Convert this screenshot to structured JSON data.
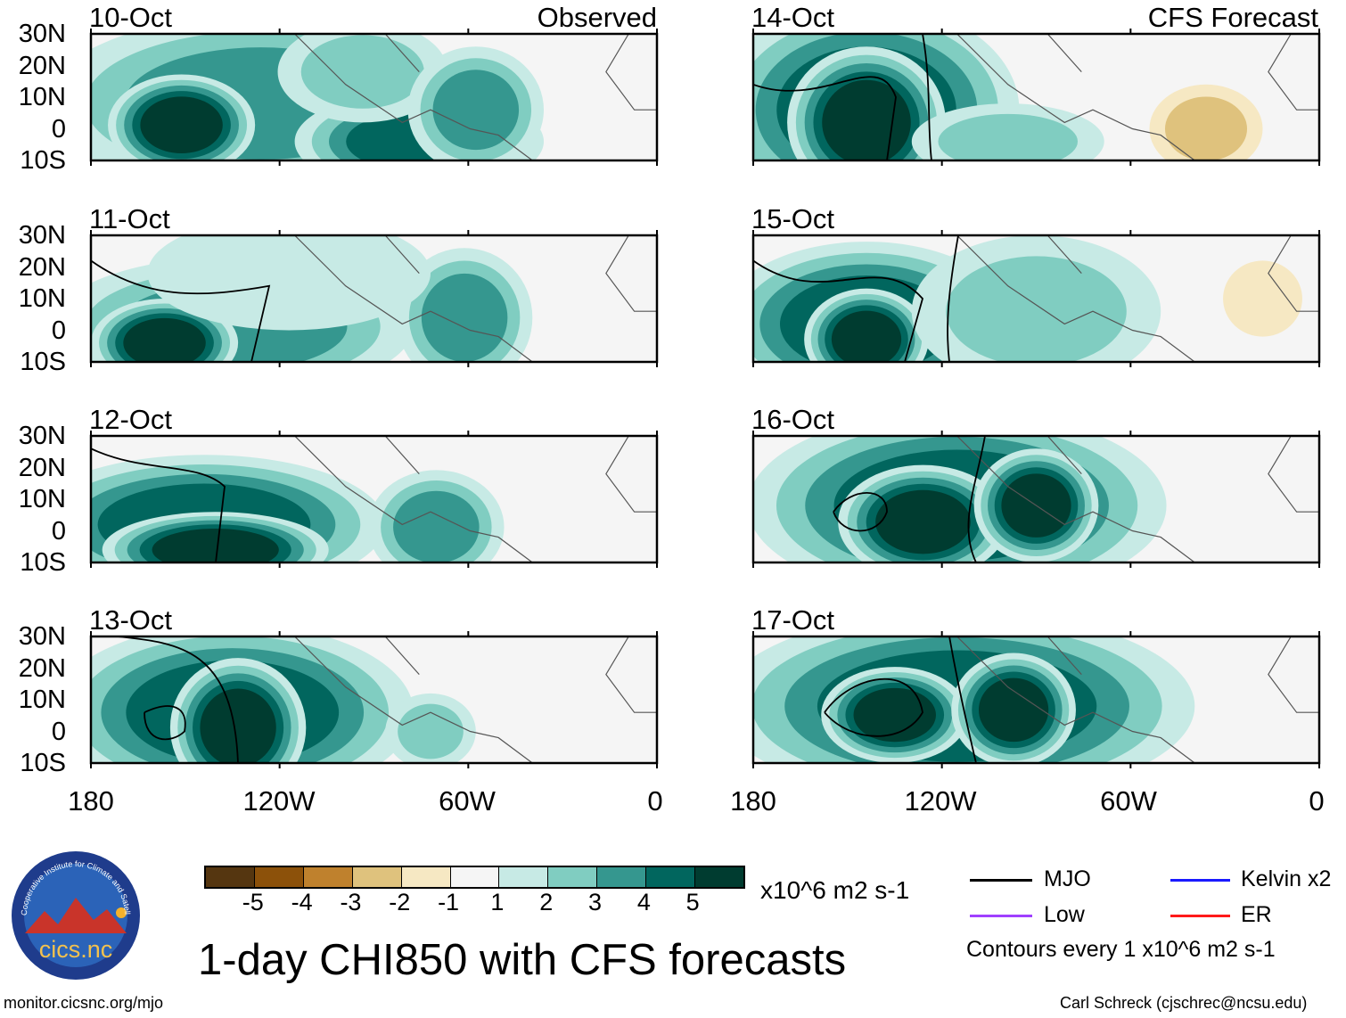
{
  "title": "1-day CHI850 with CFS forecasts",
  "left_header": "Observed",
  "right_header": "CFS Forecast",
  "panels": [
    {
      "date": "10-Oct",
      "column": "left"
    },
    {
      "date": "11-Oct",
      "column": "left"
    },
    {
      "date": "12-Oct",
      "column": "left"
    },
    {
      "date": "13-Oct",
      "column": "left"
    },
    {
      "date": "14-Oct",
      "column": "right"
    },
    {
      "date": "15-Oct",
      "column": "right"
    },
    {
      "date": "16-Oct",
      "column": "right"
    },
    {
      "date": "17-Oct",
      "column": "right"
    }
  ],
  "lat_labels": [
    "30N",
    "20N",
    "10N",
    "0",
    "10S"
  ],
  "lon_labels": [
    "180",
    "120W",
    "60W",
    "0"
  ],
  "colorbar": {
    "labels": [
      "-5",
      "-4",
      "-3",
      "-2",
      "-1",
      "1",
      "2",
      "3",
      "4",
      "5"
    ],
    "colors": [
      "#553610",
      "#8c510a",
      "#bf812d",
      "#dfc27d",
      "#f6e8c3",
      "#f5f5f5",
      "#c7eae5",
      "#80cdc1",
      "#35978f",
      "#01665e",
      "#003c30"
    ],
    "units": "x10^6 m2 s-1"
  },
  "legend": {
    "items": [
      {
        "label": "MJO",
        "color": "#000000"
      },
      {
        "label": "Kelvin x2",
        "color": "#1a1aff"
      },
      {
        "label": "Low",
        "color": "#a040ff"
      },
      {
        "label": "ER",
        "color": "#ff1a1a"
      }
    ],
    "contour_note": "Contours every 1 x10^6 m2 s-1"
  },
  "logo": {
    "text": "cics.nc",
    "ring_text": "Cooperative Institute for Climate and Satellites"
  },
  "footer": {
    "url": "monitor.cicsnc.org/mjo",
    "credit": "Carl Schreck (cjschrec@ncsu.edu)"
  }
}
